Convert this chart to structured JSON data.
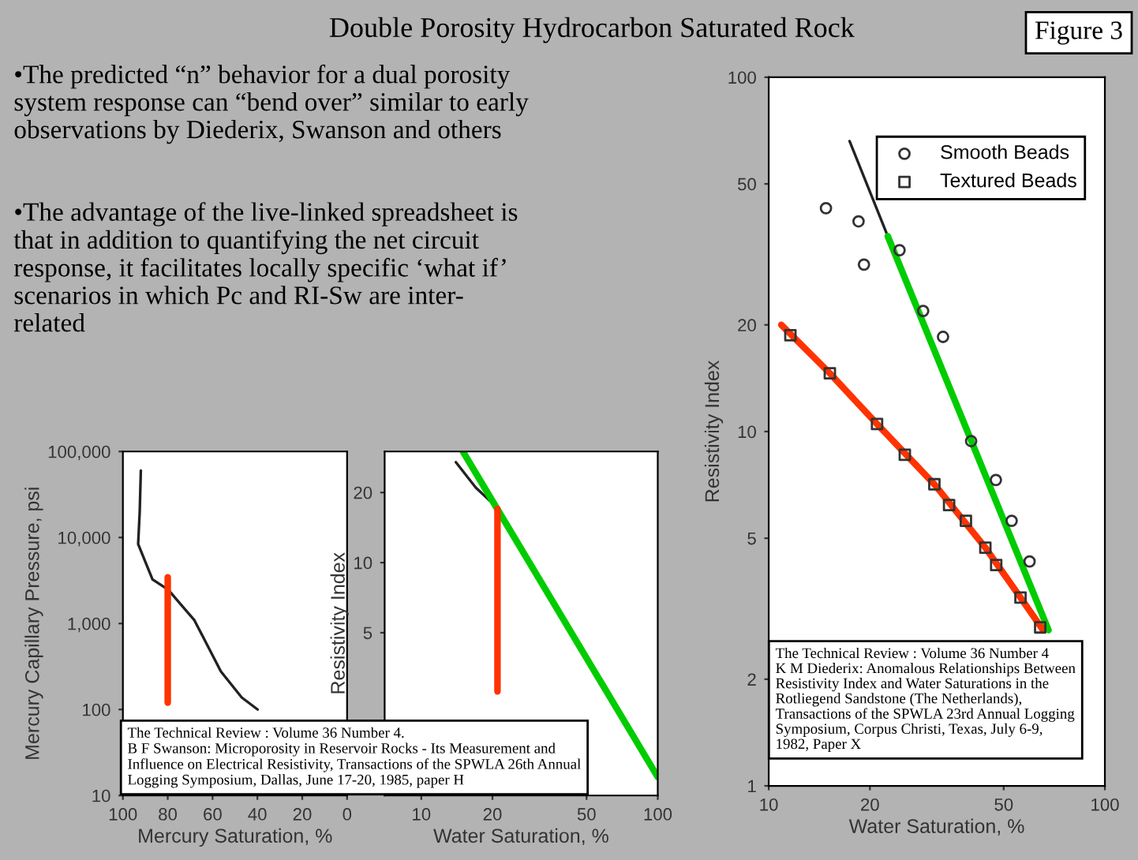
{
  "chart_data": [
    {
      "type": "other",
      "title": "Double Porosity Hydrocarbon Saturated Rock",
      "annotations": [
        "Figure 3",
        "•The predicted “n” behavior for a dual porosity\nsystem response can “bend over” similar to early\nobservations by Diederix, Swanson and others",
        "•The advantage of the live-linked spreadsheet is\nthat in addition to quantifying the net circuit\nresponse, it facilitates locally specific ‘what if’\nscenarios in which Pc and RI-Sw are inter-\nrelated"
      ]
    },
    {
      "type": "line",
      "xlabel": "Mercury Saturation, %",
      "ylabel": "Mercury Capillary Pressure, psi",
      "log": "y",
      "xlim": [
        100,
        0
      ],
      "xticks": [
        100,
        80,
        60,
        40,
        20,
        0
      ],
      "ylim": [
        10,
        100000
      ],
      "yticks": [
        10,
        100,
        {
          "value": 1000,
          "label": "1,000"
        },
        {
          "value": 10000,
          "label": "10,000"
        },
        {
          "value": 100000,
          "label": "100,000"
        }
      ],
      "series": [
        {
          "color": "#222222",
          "x": [
            92,
            92.5,
            93.2,
            86.8,
            79.8,
            68.1,
            56.3,
            47,
            39.9
          ],
          "values": [
            60000,
            20000,
            8400,
            3250,
            2470,
            1090,
            277,
            138,
            100
          ]
        },
        {
          "color": "#ff3300",
          "x": [
            80,
            80
          ],
          "values": [
            120,
            3450
          ]
        }
      ],
      "annotations": [
        "The Technical Review : Volume 36 Number 4.\nB F Swanson: Microporosity in Reservoir Rocks - Its Measurement and\nInfluence on Electrical Resistivity, Transactions of the SPWLA 26th Annual\nLogging Symposium, Dallas, June 17-20, 1985, paper H"
      ]
    },
    {
      "type": "line",
      "xlabel": "Water Saturation, %",
      "ylabel": "Resistivity Index",
      "log": "xy",
      "xlim": [
        7,
        100
      ],
      "xticks": [
        10,
        20,
        50,
        100
      ],
      "ylim": [
        1,
        30
      ],
      "yticks": [
        5,
        10,
        20
      ],
      "series": [
        {
          "color": "#222222",
          "x": [
            14,
            17,
            20
          ],
          "values": [
            27,
            21,
            18
          ]
        },
        {
          "color": "#00cc00",
          "x": [
            15,
            100
          ],
          "values": [
            30,
            1.2
          ]
        },
        {
          "color": "#ff3300",
          "x": [
            21,
            21
          ],
          "values": [
            2.8,
            17
          ]
        }
      ]
    },
    {
      "type": "line",
      "xlabel": "Water Saturation, %",
      "ylabel": "Resistivity Index",
      "log": "xy",
      "xlim": [
        10,
        100
      ],
      "xticks": [
        10,
        20,
        50,
        100
      ],
      "ylim": [
        1,
        100
      ],
      "yticks": [
        1,
        2,
        5,
        10,
        20,
        50,
        100
      ],
      "legend": "top right",
      "series": [
        {
          "name": "Smooth Beads",
          "type": "scatter",
          "marker": "circle",
          "color": "#333333",
          "x": [
            14.8,
            18.5,
            19.2,
            24.5,
            28.8,
            33.0,
            40.0,
            47.4,
            52.8,
            59.7
          ],
          "values": [
            42.7,
            39.2,
            29.6,
            32.5,
            21.9,
            18.5,
            9.4,
            7.3,
            5.6,
            4.3
          ]
        },
        {
          "name": "Textured Beads",
          "type": "scatter",
          "marker": "square",
          "color": "#333333",
          "x": [
            11.6,
            15.2,
            21.0,
            25.4,
            31.1,
            34.4,
            38.6,
            44.1,
            47.5,
            56.1,
            64.2
          ],
          "values": [
            18.7,
            14.6,
            10.5,
            8.6,
            7.1,
            6.2,
            5.6,
            4.7,
            4.2,
            3.4,
            2.8
          ]
        },
        {
          "color": "#222222",
          "x": [
            17.4,
            22.6
          ],
          "values": [
            66,
            35.6
          ]
        },
        {
          "color": "#00cc00",
          "x": [
            22.6,
            68
          ],
          "values": [
            35.6,
            2.75
          ]
        },
        {
          "color": "#ff3300",
          "x": [
            10.9,
            15.2,
            21,
            31.1,
            44.1,
            56.1,
            65.5
          ],
          "values": [
            20,
            14.6,
            10.5,
            7.1,
            4.7,
            3.4,
            2.75
          ]
        }
      ],
      "annotations": [
        "The Technical Review : Volume 36 Number 4\nK M Diederix: Anomalous Relationships Between\nResistivity Index and Water Saturations in the\nRotliegend Sandstone (The Netherlands),\nTransactions of the SPWLA 23rd Annual Logging\nSymposium, Corpus Christi, Texas, July 6-9,\n1982, Paper X"
      ]
    }
  ]
}
